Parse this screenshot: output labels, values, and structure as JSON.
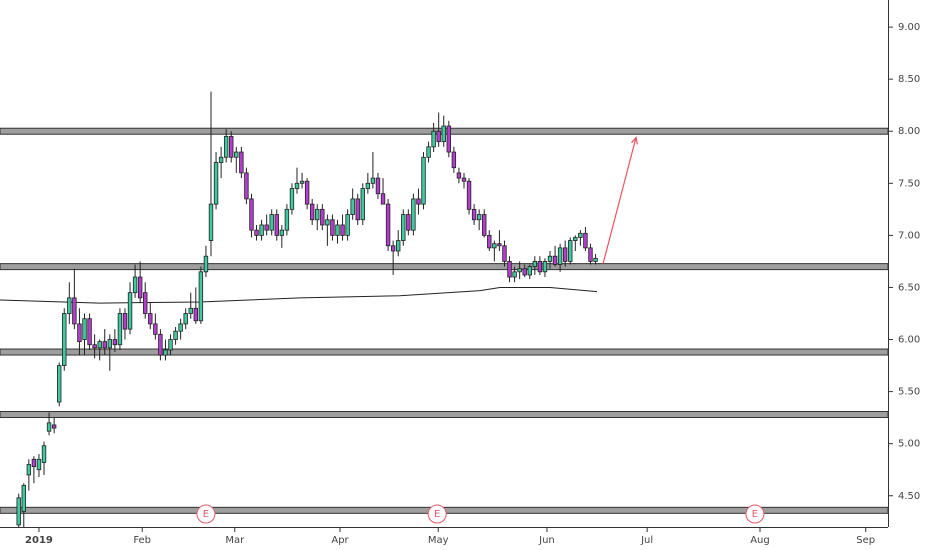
{
  "chart_data": {
    "type": "candlestick",
    "up_color": "#3fc9a0",
    "down_color": "#b43ccf",
    "xlim": [
      -7.7,
      167.8
    ],
    "ylim": [
      4.2,
      9.26
    ],
    "yticks": [
      {
        "value": 4.5,
        "label": "4.50"
      },
      {
        "value": 5,
        "label": "5.00"
      },
      {
        "value": 5.5,
        "label": "5.50"
      },
      {
        "value": 6,
        "label": "6.00"
      },
      {
        "value": 6.5,
        "label": "6.50"
      },
      {
        "value": 7,
        "label": "7.00"
      },
      {
        "value": 7.5,
        "label": "7.50"
      },
      {
        "value": 8,
        "label": "8.00"
      },
      {
        "value": 8.5,
        "label": "8.50"
      },
      {
        "value": 9,
        "label": "9.00"
      }
    ],
    "xticks": [
      {
        "value": 0,
        "label": "2019"
      },
      {
        "value": 20.4,
        "label": "Feb"
      },
      {
        "value": 38.7,
        "label": "Mar"
      },
      {
        "value": 59.5,
        "label": "Apr"
      },
      {
        "value": 78.9,
        "label": "May"
      },
      {
        "value": 100.4,
        "label": "Jun"
      },
      {
        "value": 120.2,
        "label": "Jul"
      },
      {
        "value": 142.5,
        "label": "Aug"
      },
      {
        "value": 163.4,
        "label": "Sep"
      }
    ],
    "x": [
      -4,
      -3,
      -2,
      -1,
      0,
      1,
      2,
      3,
      4,
      5,
      6,
      7,
      8,
      9,
      10,
      11,
      12,
      13,
      14,
      15,
      16,
      17,
      18,
      19,
      20,
      21,
      22,
      23,
      24,
      25,
      26,
      27,
      28,
      29,
      30,
      31,
      32,
      33,
      34,
      35,
      36,
      37,
      38,
      39,
      40,
      41,
      42,
      43,
      44,
      45,
      46,
      47,
      48,
      49,
      50,
      51,
      52,
      53,
      54,
      55,
      56,
      57,
      58,
      59,
      60,
      61,
      62,
      63,
      64,
      65,
      66,
      67,
      68,
      69,
      70,
      71,
      72,
      73,
      74,
      75,
      76,
      77,
      78,
      79,
      80,
      81,
      82,
      83,
      84,
      85,
      86,
      87,
      88,
      89,
      90,
      91,
      92,
      93,
      94,
      95,
      96,
      97,
      98,
      99,
      100,
      101,
      102,
      103,
      104,
      105,
      106,
      107,
      108,
      109,
      110
    ],
    "open": [
      4.22,
      4.35,
      4.7,
      4.85,
      4.75,
      4.82,
      5.12,
      5.18,
      5.4,
      5.75,
      6.25,
      6.4,
      6.15,
      6.0,
      6.2,
      5.95,
      5.92,
      5.98,
      5.92,
      6.0,
      5.95,
      6.25,
      6.1,
      6.45,
      6.6,
      6.45,
      6.25,
      6.15,
      6.05,
      5.85,
      5.9,
      6.0,
      6.08,
      6.15,
      6.25,
      6.3,
      6.18,
      6.65,
      6.95,
      7.3,
      7.7,
      7.75,
      7.95,
      7.75,
      7.8,
      7.6,
      7.35,
      7.05,
      7.0,
      7.1,
      7.05,
      7.2,
      7.0,
      7.05,
      7.25,
      7.45,
      7.5,
      7.52,
      7.3,
      7.15,
      7.25,
      7.1,
      7.15,
      7.0,
      7.1,
      7.0,
      7.2,
      7.35,
      7.15,
      7.45,
      7.5,
      7.55,
      7.4,
      7.3,
      6.9,
      6.85,
      6.95,
      7.2,
      7.05,
      7.35,
      7.3,
      7.75,
      7.85,
      8.0,
      7.9,
      8.05,
      7.8,
      7.6,
      7.55,
      7.52,
      7.25,
      7.15,
      7.2,
      7.0,
      6.88,
      6.92,
      6.9,
      6.75,
      6.6,
      6.65,
      6.68,
      6.62,
      6.7,
      6.75,
      6.65,
      6.75,
      6.8,
      6.72,
      6.88,
      6.75,
      6.95,
      6.98,
      7.02,
      6.88,
      6.75
    ],
    "high": [
      4.52,
      4.62,
      4.85,
      4.88,
      4.9,
      5.02,
      5.3,
      5.25,
      5.78,
      6.3,
      6.55,
      6.68,
      6.3,
      6.25,
      6.25,
      6.05,
      6.0,
      6.1,
      6.05,
      6.1,
      6.3,
      6.3,
      6.55,
      6.72,
      6.75,
      6.55,
      6.35,
      6.25,
      6.1,
      6.0,
      6.05,
      6.12,
      6.2,
      6.3,
      6.45,
      6.5,
      6.7,
      6.9,
      8.38,
      7.8,
      7.85,
      8.02,
      8.0,
      7.85,
      7.85,
      7.65,
      7.4,
      7.1,
      7.15,
      7.2,
      7.25,
      7.25,
      7.1,
      7.3,
      7.5,
      7.65,
      7.6,
      7.55,
      7.35,
      7.3,
      7.3,
      7.2,
      7.2,
      7.15,
      7.2,
      7.25,
      7.45,
      7.4,
      7.5,
      7.6,
      7.8,
      7.6,
      7.55,
      7.35,
      6.95,
      7.05,
      7.25,
      7.25,
      7.4,
      7.45,
      7.8,
      7.9,
      8.08,
      8.18,
      8.15,
      8.1,
      7.85,
      7.65,
      7.6,
      7.55,
      7.3,
      7.25,
      7.25,
      7.05,
      6.95,
      7.05,
      6.95,
      6.8,
      6.7,
      6.75,
      6.72,
      6.72,
      6.8,
      6.8,
      6.78,
      6.85,
      6.9,
      6.92,
      6.95,
      6.98,
      7.0,
      7.05,
      7.08,
      6.92,
      6.82
    ],
    "low": [
      4.2,
      4.2,
      4.55,
      4.62,
      4.68,
      4.7,
      5.08,
      5.1,
      5.36,
      5.7,
      6.15,
      6.1,
      5.85,
      5.85,
      5.9,
      5.82,
      5.8,
      5.85,
      5.7,
      5.88,
      5.9,
      6.0,
      6.05,
      6.4,
      6.35,
      6.2,
      6.1,
      6.0,
      5.8,
      5.8,
      5.85,
      5.95,
      6.0,
      6.1,
      6.2,
      6.15,
      6.15,
      6.6,
      6.8,
      7.25,
      7.55,
      7.7,
      7.7,
      7.6,
      7.55,
      7.3,
      6.98,
      6.95,
      6.95,
      7.0,
      7.0,
      6.95,
      6.88,
      7.0,
      7.2,
      7.4,
      7.45,
      7.25,
      7.1,
      7.05,
      7.05,
      6.9,
      6.95,
      6.92,
      6.95,
      6.95,
      7.15,
      7.1,
      7.1,
      7.4,
      7.45,
      7.35,
      7.3,
      6.85,
      6.62,
      6.8,
      6.9,
      7.0,
      7.0,
      7.2,
      7.25,
      7.7,
      7.8,
      7.85,
      7.85,
      7.75,
      7.6,
      7.5,
      7.45,
      7.2,
      7.1,
      7.05,
      6.98,
      6.85,
      6.75,
      6.85,
      6.7,
      6.55,
      6.55,
      6.58,
      6.6,
      6.58,
      6.62,
      6.62,
      6.6,
      6.68,
      6.7,
      6.65,
      6.7,
      6.72,
      6.85,
      6.9,
      6.85,
      6.72,
      6.72
    ],
    "close": [
      4.48,
      4.6,
      4.8,
      4.78,
      4.85,
      4.98,
      5.2,
      5.15,
      5.75,
      6.25,
      6.4,
      6.15,
      5.98,
      6.2,
      5.95,
      5.92,
      5.98,
      5.92,
      6.0,
      5.95,
      6.25,
      6.1,
      6.45,
      6.6,
      6.4,
      6.25,
      6.15,
      6.05,
      5.85,
      5.9,
      6.0,
      6.08,
      6.15,
      6.25,
      6.3,
      6.18,
      6.65,
      6.8,
      7.3,
      7.7,
      7.75,
      7.95,
      7.75,
      7.8,
      7.6,
      7.35,
      7.05,
      7.0,
      7.1,
      7.05,
      7.2,
      7.0,
      7.05,
      7.25,
      7.45,
      7.5,
      7.52,
      7.3,
      7.15,
      7.25,
      7.1,
      7.15,
      7.0,
      7.1,
      7.0,
      7.2,
      7.35,
      7.15,
      7.45,
      7.5,
      7.55,
      7.4,
      7.3,
      6.9,
      6.85,
      6.95,
      7.2,
      7.05,
      7.35,
      7.3,
      7.75,
      7.85,
      8.0,
      7.9,
      8.05,
      7.8,
      7.65,
      7.55,
      7.52,
      7.25,
      7.15,
      7.2,
      7.0,
      6.88,
      6.92,
      6.9,
      6.75,
      6.6,
      6.65,
      6.68,
      6.62,
      6.7,
      6.75,
      6.65,
      6.75,
      6.8,
      6.72,
      6.88,
      6.75,
      6.95,
      6.98,
      7.02,
      6.88,
      6.75,
      6.78
    ],
    "moving_average": {
      "color": "#222222",
      "x": [
        -7.7,
        12,
        31.8,
        51.6,
        71.3,
        87.2,
        91.1,
        101,
        110.3
      ],
      "values": [
        6.38,
        6.35,
        6.36,
        6.4,
        6.42,
        6.47,
        6.5,
        6.5,
        6.46
      ]
    },
    "levels": [
      8.0,
      6.7,
      5.88,
      5.28,
      4.36
    ],
    "level_color": "#9e9e9e",
    "arrow": {
      "color": "#e8525e",
      "x": [
        111.5,
        118
      ],
      "y": [
        6.73,
        7.94
      ]
    },
    "events": [
      {
        "x": 33,
        "label": "E"
      },
      {
        "x": 78.7,
        "label": "E"
      },
      {
        "x": 141.5,
        "label": "E"
      }
    ]
  }
}
